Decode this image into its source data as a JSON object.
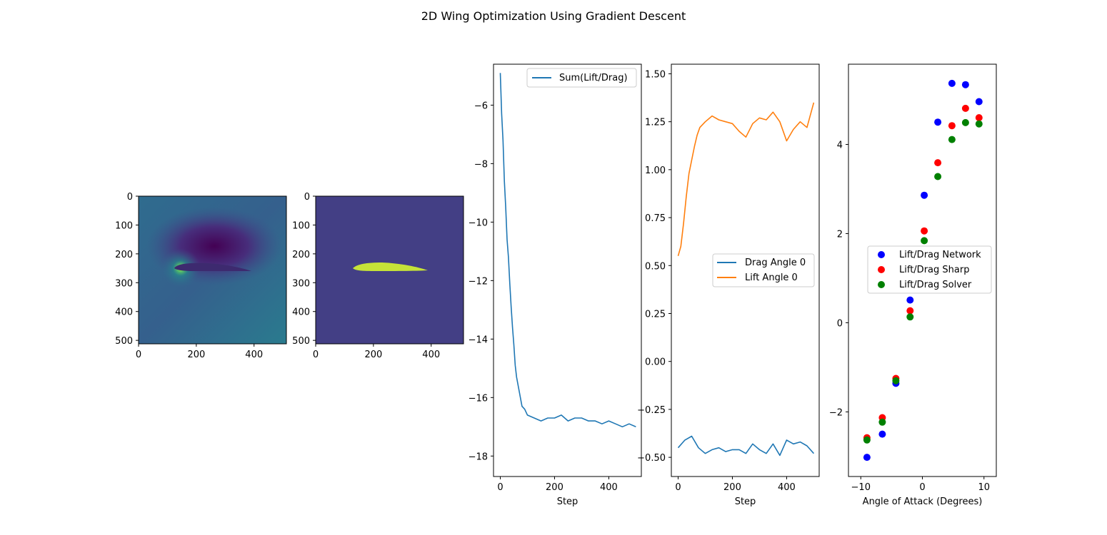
{
  "figure": {
    "title": "2D Wing Optimization Using Gradient Descent"
  },
  "chart_data": [
    {
      "type": "heatmap",
      "content": "flow field around airfoil (viridis)",
      "x_ticks": [
        "0",
        "200",
        "400"
      ],
      "y_ticks": [
        "0",
        "100",
        "200",
        "300",
        "400",
        "500"
      ],
      "xlim": [
        0,
        512
      ],
      "ylim": [
        512,
        0
      ],
      "colormap": "viridis"
    },
    {
      "type": "heatmap",
      "content": "airfoil mask (viridis)",
      "x_ticks": [
        "0",
        "200",
        "400"
      ],
      "y_ticks": [
        "0",
        "100",
        "200",
        "300",
        "400",
        "500"
      ],
      "xlim": [
        0,
        512
      ],
      "ylim": [
        512,
        0
      ],
      "background_color": "#433f85",
      "foreground_color": "#c6e338"
    },
    {
      "type": "line",
      "xlabel": "Step",
      "ylabel": "",
      "xlim": [
        -25,
        520
      ],
      "ylim": [
        -18.7,
        -4.6
      ],
      "x_ticks": [
        0,
        200,
        400
      ],
      "y_ticks": [
        -6,
        -8,
        -10,
        -12,
        -14,
        -16,
        -18
      ],
      "legend_position": "top-right",
      "series": [
        {
          "name": "Sum(Lift/Drag)",
          "color": "#1f77b4",
          "points": [
            [
              0,
              -4.9
            ],
            [
              5,
              -6.3
            ],
            [
              10,
              -7.2
            ],
            [
              15,
              -8.6
            ],
            [
              20,
              -9.5
            ],
            [
              25,
              -10.6
            ],
            [
              30,
              -11.2
            ],
            [
              35,
              -12.1
            ],
            [
              40,
              -12.9
            ],
            [
              45,
              -13.6
            ],
            [
              50,
              -14.2
            ],
            [
              55,
              -14.9
            ],
            [
              60,
              -15.3
            ],
            [
              70,
              -15.8
            ],
            [
              80,
              -16.3
            ],
            [
              90,
              -16.4
            ],
            [
              100,
              -16.6
            ],
            [
              125,
              -16.7
            ],
            [
              150,
              -16.8
            ],
            [
              175,
              -16.7
            ],
            [
              200,
              -16.7
            ],
            [
              225,
              -16.6
            ],
            [
              250,
              -16.8
            ],
            [
              275,
              -16.7
            ],
            [
              300,
              -16.7
            ],
            [
              325,
              -16.8
            ],
            [
              350,
              -16.8
            ],
            [
              375,
              -16.9
            ],
            [
              400,
              -16.8
            ],
            [
              425,
              -16.9
            ],
            [
              450,
              -17.0
            ],
            [
              475,
              -16.9
            ],
            [
              500,
              -17.0
            ]
          ]
        }
      ]
    },
    {
      "type": "line",
      "xlabel": "Step",
      "ylabel": "",
      "xlim": [
        -25,
        520
      ],
      "ylim": [
        -0.6,
        1.55
      ],
      "x_ticks": [
        0,
        200,
        400
      ],
      "y_ticks": [
        1.5,
        1.25,
        1.0,
        0.75,
        0.5,
        0.25,
        0.0,
        -0.25,
        -0.5
      ],
      "legend_position": "center-right",
      "series": [
        {
          "name": "Drag Angle 0",
          "color": "#1f77b4",
          "points": [
            [
              0,
              -0.45
            ],
            [
              25,
              -0.41
            ],
            [
              50,
              -0.39
            ],
            [
              75,
              -0.45
            ],
            [
              100,
              -0.48
            ],
            [
              125,
              -0.46
            ],
            [
              150,
              -0.45
            ],
            [
              175,
              -0.47
            ],
            [
              200,
              -0.46
            ],
            [
              225,
              -0.46
            ],
            [
              250,
              -0.48
            ],
            [
              275,
              -0.43
            ],
            [
              300,
              -0.46
            ],
            [
              325,
              -0.48
            ],
            [
              350,
              -0.43
            ],
            [
              375,
              -0.49
            ],
            [
              400,
              -0.41
            ],
            [
              425,
              -0.43
            ],
            [
              450,
              -0.42
            ],
            [
              475,
              -0.44
            ],
            [
              500,
              -0.48
            ]
          ]
        },
        {
          "name": "Lift Angle 0",
          "color": "#ff7f0e",
          "points": [
            [
              0,
              0.55
            ],
            [
              10,
              0.6
            ],
            [
              20,
              0.72
            ],
            [
              30,
              0.86
            ],
            [
              40,
              0.98
            ],
            [
              50,
              1.05
            ],
            [
              60,
              1.12
            ],
            [
              70,
              1.18
            ],
            [
              80,
              1.22
            ],
            [
              100,
              1.25
            ],
            [
              125,
              1.28
            ],
            [
              150,
              1.26
            ],
            [
              175,
              1.25
            ],
            [
              200,
              1.24
            ],
            [
              225,
              1.2
            ],
            [
              250,
              1.17
            ],
            [
              275,
              1.24
            ],
            [
              300,
              1.27
            ],
            [
              325,
              1.26
            ],
            [
              350,
              1.3
            ],
            [
              375,
              1.25
            ],
            [
              400,
              1.15
            ],
            [
              425,
              1.21
            ],
            [
              450,
              1.25
            ],
            [
              475,
              1.22
            ],
            [
              500,
              1.35
            ]
          ]
        }
      ]
    },
    {
      "type": "scatter",
      "xlabel": "Angle of Attack (Degrees)",
      "ylabel": "",
      "xlim": [
        -12,
        12
      ],
      "ylim": [
        -3.45,
        5.8
      ],
      "x_ticks": [
        -10,
        0,
        10
      ],
      "y_ticks": [
        4,
        2,
        0,
        -2
      ],
      "legend_position": "center",
      "series": [
        {
          "name": "Lift/Drag Network",
          "color": "#0000ff",
          "points": [
            [
              -9,
              -3.02
            ],
            [
              -6.5,
              -2.5
            ],
            [
              -4.3,
              -1.36
            ],
            [
              -2,
              0.51
            ],
            [
              0.3,
              2.86
            ],
            [
              2.5,
              4.5
            ],
            [
              4.8,
              5.37
            ],
            [
              7,
              5.34
            ],
            [
              9.2,
              4.96
            ]
          ]
        },
        {
          "name": "Lift/Drag Sharp",
          "color": "#ff0000",
          "points": [
            [
              -9,
              -2.58
            ],
            [
              -6.5,
              -2.13
            ],
            [
              -4.3,
              -1.25
            ],
            [
              -2,
              0.27
            ],
            [
              0.3,
              2.06
            ],
            [
              2.5,
              3.59
            ],
            [
              4.8,
              4.42
            ],
            [
              7,
              4.81
            ],
            [
              9.2,
              4.6
            ]
          ]
        },
        {
          "name": "Lift/Drag Solver",
          "color": "#008000",
          "points": [
            [
              -9,
              -2.63
            ],
            [
              -6.5,
              -2.23
            ],
            [
              -4.3,
              -1.3
            ],
            [
              -2,
              0.13
            ],
            [
              0.3,
              1.84
            ],
            [
              2.5,
              3.28
            ],
            [
              4.8,
              4.11
            ],
            [
              7,
              4.49
            ],
            [
              9.2,
              4.46
            ]
          ]
        }
      ]
    }
  ]
}
